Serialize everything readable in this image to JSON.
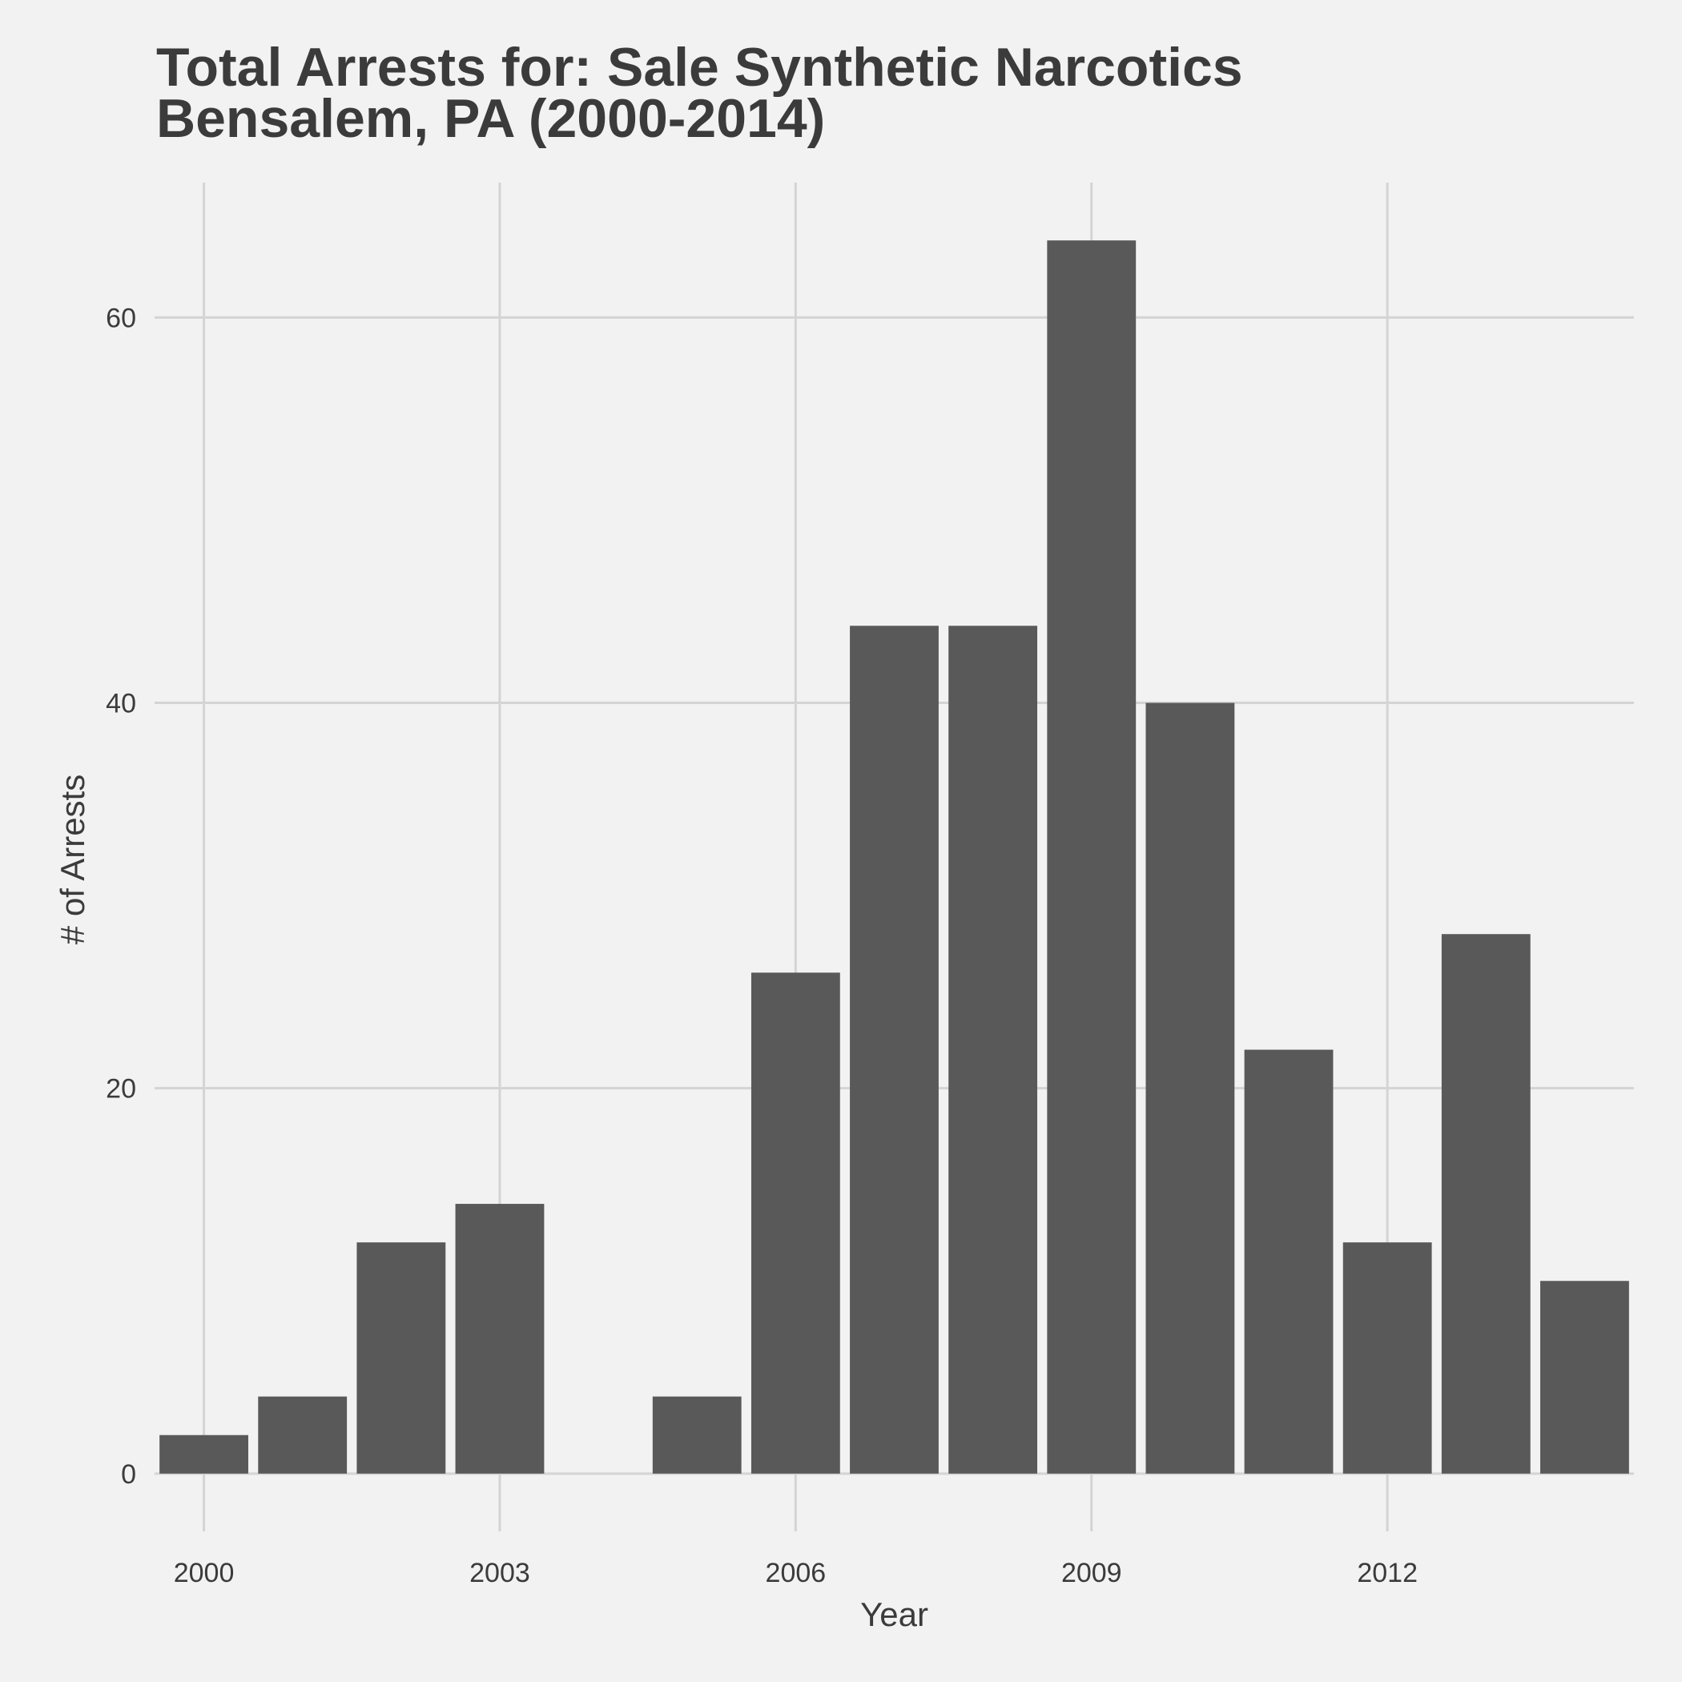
{
  "chart_data": {
    "type": "bar",
    "title_lines": [
      "Total Arrests for: Sale Synthetic Narcotics",
      "Bensalem, PA (2000-2014)"
    ],
    "xlabel": "Year",
    "ylabel": "# of Arrests",
    "x": [
      2000,
      2001,
      2002,
      2003,
      2004,
      2005,
      2006,
      2007,
      2008,
      2009,
      2010,
      2011,
      2012,
      2013,
      2014
    ],
    "values": [
      2,
      4,
      12,
      14,
      0,
      4,
      26,
      44,
      44,
      64,
      40,
      22,
      12,
      28,
      10
    ],
    "xlim": [
      1999.5,
      2014.5
    ],
    "ylim": [
      -3,
      67
    ],
    "x_ticks": [
      2000,
      2003,
      2006,
      2009,
      2012
    ],
    "y_ticks": [
      0,
      20,
      40,
      60
    ],
    "grid": true,
    "legend": "none",
    "colors": {
      "background": "#f2f2f2",
      "bar": "#595959",
      "grid": "#d4d4d4",
      "text": "#3b3b3b"
    }
  }
}
